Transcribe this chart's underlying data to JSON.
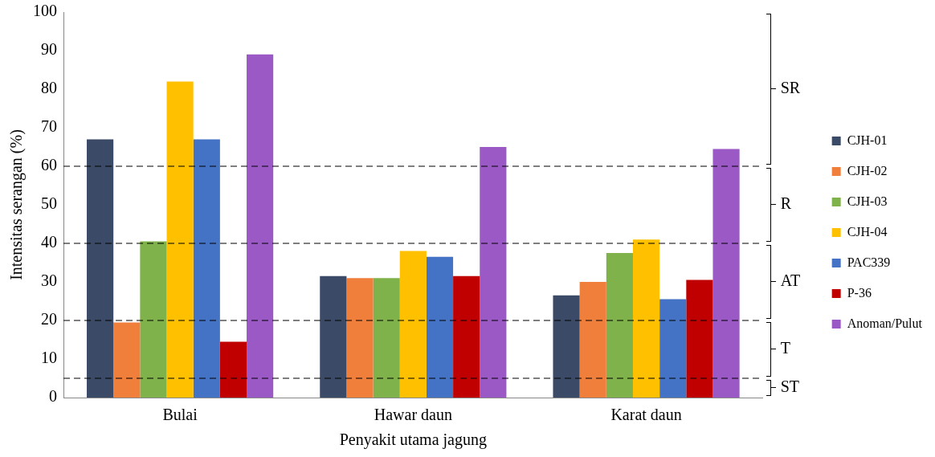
{
  "chart_data": {
    "type": "bar",
    "xlabel": "Penyakit utama jagung",
    "ylabel": "Intensitas serangan (%)",
    "categories": [
      "Bulai",
      "Hawar daun",
      "Karat daun"
    ],
    "series": [
      {
        "name": "CJH-01",
        "color": "#3b4a66",
        "values": [
          67,
          31.5,
          26.5
        ]
      },
      {
        "name": "CJH-02",
        "color": "#f07f3c",
        "values": [
          19.5,
          31,
          30
        ]
      },
      {
        "name": "CJH-03",
        "color": "#7fb24a",
        "values": [
          40.5,
          31,
          37.5
        ]
      },
      {
        "name": "CJH-04",
        "color": "#ffc000",
        "values": [
          82,
          38,
          41
        ]
      },
      {
        "name": "PAC339",
        "color": "#4472c4",
        "values": [
          67,
          36.5,
          25.5
        ]
      },
      {
        "name": "P-36",
        "color": "#c00000",
        "values": [
          14.5,
          31.5,
          30.5
        ]
      },
      {
        "name": "Anoman/Pulut",
        "color": "#9b59c6",
        "values": [
          89,
          65,
          64.5
        ]
      }
    ],
    "ylim": [
      0,
      100
    ],
    "yticks": [
      0,
      10,
      20,
      30,
      40,
      50,
      60,
      70,
      80,
      90,
      100
    ],
    "grid": false,
    "legend": "right",
    "ref_lines": [
      {
        "axis": "y",
        "value": 5,
        "line_style": "dashed",
        "color": "#000000"
      },
      {
        "axis": "y",
        "value": 20,
        "line_style": "dashed",
        "color": "#000000"
      },
      {
        "axis": "y",
        "value": 40,
        "line_style": "dashed",
        "color": "#000000"
      },
      {
        "axis": "y",
        "value": 60,
        "line_style": "dashed",
        "color": "#000000"
      }
    ],
    "annotations": [
      "SR",
      "R",
      "AT",
      "T",
      "ST"
    ]
  }
}
